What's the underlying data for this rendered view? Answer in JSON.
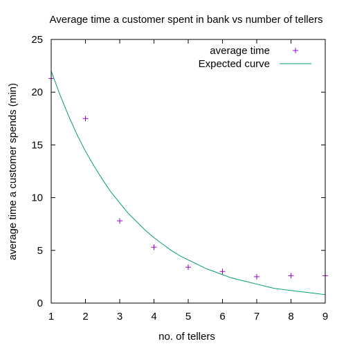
{
  "chart_data": {
    "type": "scatter",
    "title": "Average time a customer spent in bank vs number of tellers",
    "xlabel": "no. of tellers",
    "ylabel": "average time a customer spends (min)",
    "xlim": [
      1,
      9
    ],
    "ylim": [
      0,
      25
    ],
    "xticks": [
      "1",
      "2",
      "3",
      "4",
      "5",
      "6",
      "7",
      "8",
      "9"
    ],
    "yticks": [
      "0",
      "5",
      "10",
      "15",
      "20",
      "25"
    ],
    "legend_position": "top-right",
    "series": [
      {
        "name": "average time",
        "kind": "points",
        "marker": "plus",
        "color": "#9400d3",
        "x": [
          1,
          2,
          3,
          4,
          5,
          6,
          7,
          8,
          9
        ],
        "y": [
          21.3,
          17.5,
          7.8,
          5.3,
          3.4,
          3.0,
          2.5,
          2.6,
          2.6
        ]
      },
      {
        "name": "Expected curve",
        "kind": "line",
        "color": "#009e73",
        "x": [
          1.0,
          1.25,
          1.5,
          1.75,
          2.0,
          2.25,
          2.5,
          2.75,
          3.0,
          3.25,
          3.5,
          3.75,
          4.0,
          4.25,
          4.5,
          4.75,
          5.0,
          5.25,
          5.5,
          5.75,
          6.0,
          6.25,
          6.5,
          6.75,
          7.0,
          7.25,
          7.5,
          7.75,
          8.0,
          8.25,
          8.5,
          8.75,
          9.0
        ],
        "y": [
          22.0,
          19.8,
          17.8,
          16.0,
          14.4,
          13.0,
          11.7,
          10.5,
          9.5,
          8.5,
          7.7,
          6.9,
          6.2,
          5.6,
          5.0,
          4.5,
          4.1,
          3.7,
          3.3,
          3.0,
          2.7,
          2.4,
          2.2,
          2.0,
          1.8,
          1.6,
          1.4,
          1.3,
          1.2,
          1.1,
          1.0,
          0.9,
          0.8
        ]
      }
    ]
  }
}
